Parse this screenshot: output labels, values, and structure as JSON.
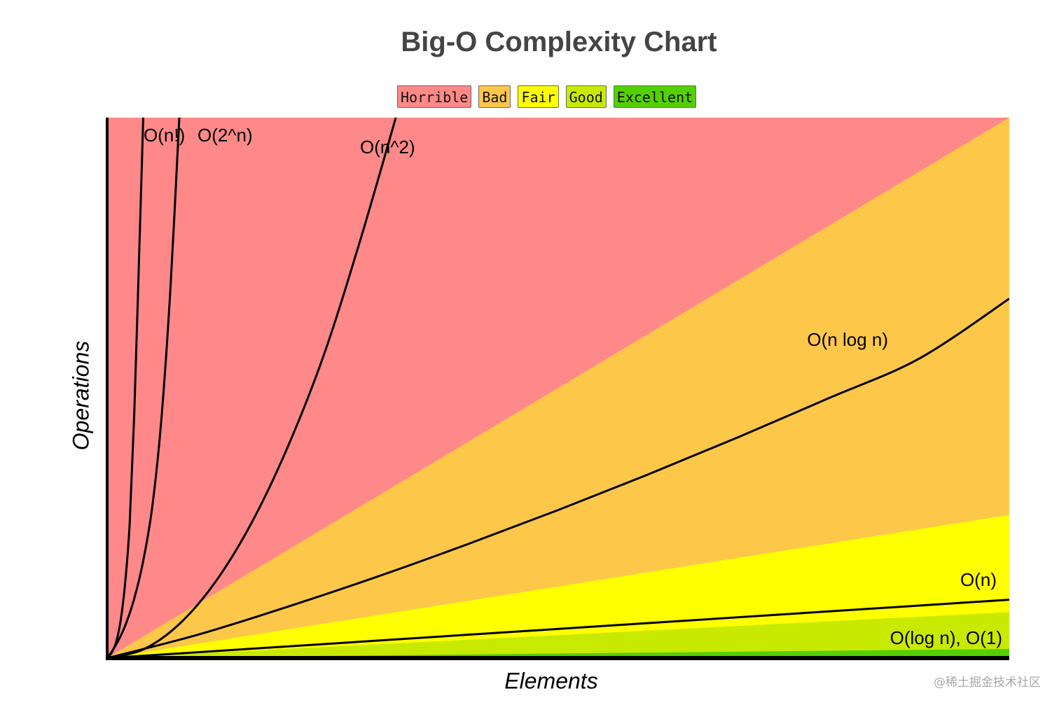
{
  "title": "Big-O Complexity Chart",
  "legend": [
    {
      "label": "Horrible",
      "color": "#ff8989"
    },
    {
      "label": "Bad",
      "color": "#fdc74a"
    },
    {
      "label": "Fair",
      "color": "#ffff00"
    },
    {
      "label": "Good",
      "color": "#c8ea00"
    },
    {
      "label": "Excellent",
      "color": "#53d000"
    }
  ],
  "watermark": "@稀土掘金技术社区",
  "chart_data": {
    "type": "line",
    "xlabel": "Elements",
    "ylabel": "Operations",
    "xlim": [
      0,
      100
    ],
    "ylim": [
      0,
      100
    ],
    "grid": false,
    "legend_position": "top-center",
    "regions": [
      {
        "name": "Horrible",
        "color": "#ff8989",
        "upper_y_at_xmax": 100
      },
      {
        "name": "Bad",
        "color": "#fdc74a",
        "upper_y_at_xmax": 100
      },
      {
        "name": "Fair",
        "color": "#ffff00",
        "upper_y_at_xmax": 26.5
      },
      {
        "name": "Good",
        "color": "#c8ea00",
        "upper_y_at_xmax": 8.5
      },
      {
        "name": "Excellent",
        "color": "#53d000",
        "upper_y_at_xmax": 1.7
      }
    ],
    "series": [
      {
        "name": "O(n!)",
        "x": [
          0,
          0.5,
          1,
          1.5,
          2,
          2.5,
          3,
          3.5,
          4
        ],
        "y": [
          0,
          1,
          3,
          7,
          14,
          25,
          45,
          72,
          100
        ]
      },
      {
        "name": "O(2^n)",
        "x": [
          0,
          1,
          2,
          3,
          4,
          5,
          6,
          7,
          8
        ],
        "y": [
          0,
          2.5,
          6,
          11,
          18,
          28,
          44,
          68,
          100
        ]
      },
      {
        "name": "O(n^2)",
        "x": [
          0,
          4,
          8,
          12,
          16,
          20,
          24,
          28,
          32
        ],
        "y": [
          0,
          1.6,
          6.3,
          14.1,
          25,
          39,
          56,
          77,
          100
        ]
      },
      {
        "name": "O(n log n)",
        "x": [
          0,
          10,
          20,
          30,
          40,
          50,
          60,
          70,
          80,
          90,
          100
        ],
        "y": [
          0,
          4.3,
          9.5,
          15.1,
          21.1,
          27.4,
          34,
          40.9,
          48.1,
          55.4,
          66.5
        ]
      },
      {
        "name": "O(n)",
        "x": [
          0,
          100
        ],
        "y": [
          0,
          10.8
        ]
      },
      {
        "name": "O(log n), O(1)",
        "x": [
          0,
          100
        ],
        "y": [
          0,
          0
        ]
      }
    ]
  }
}
